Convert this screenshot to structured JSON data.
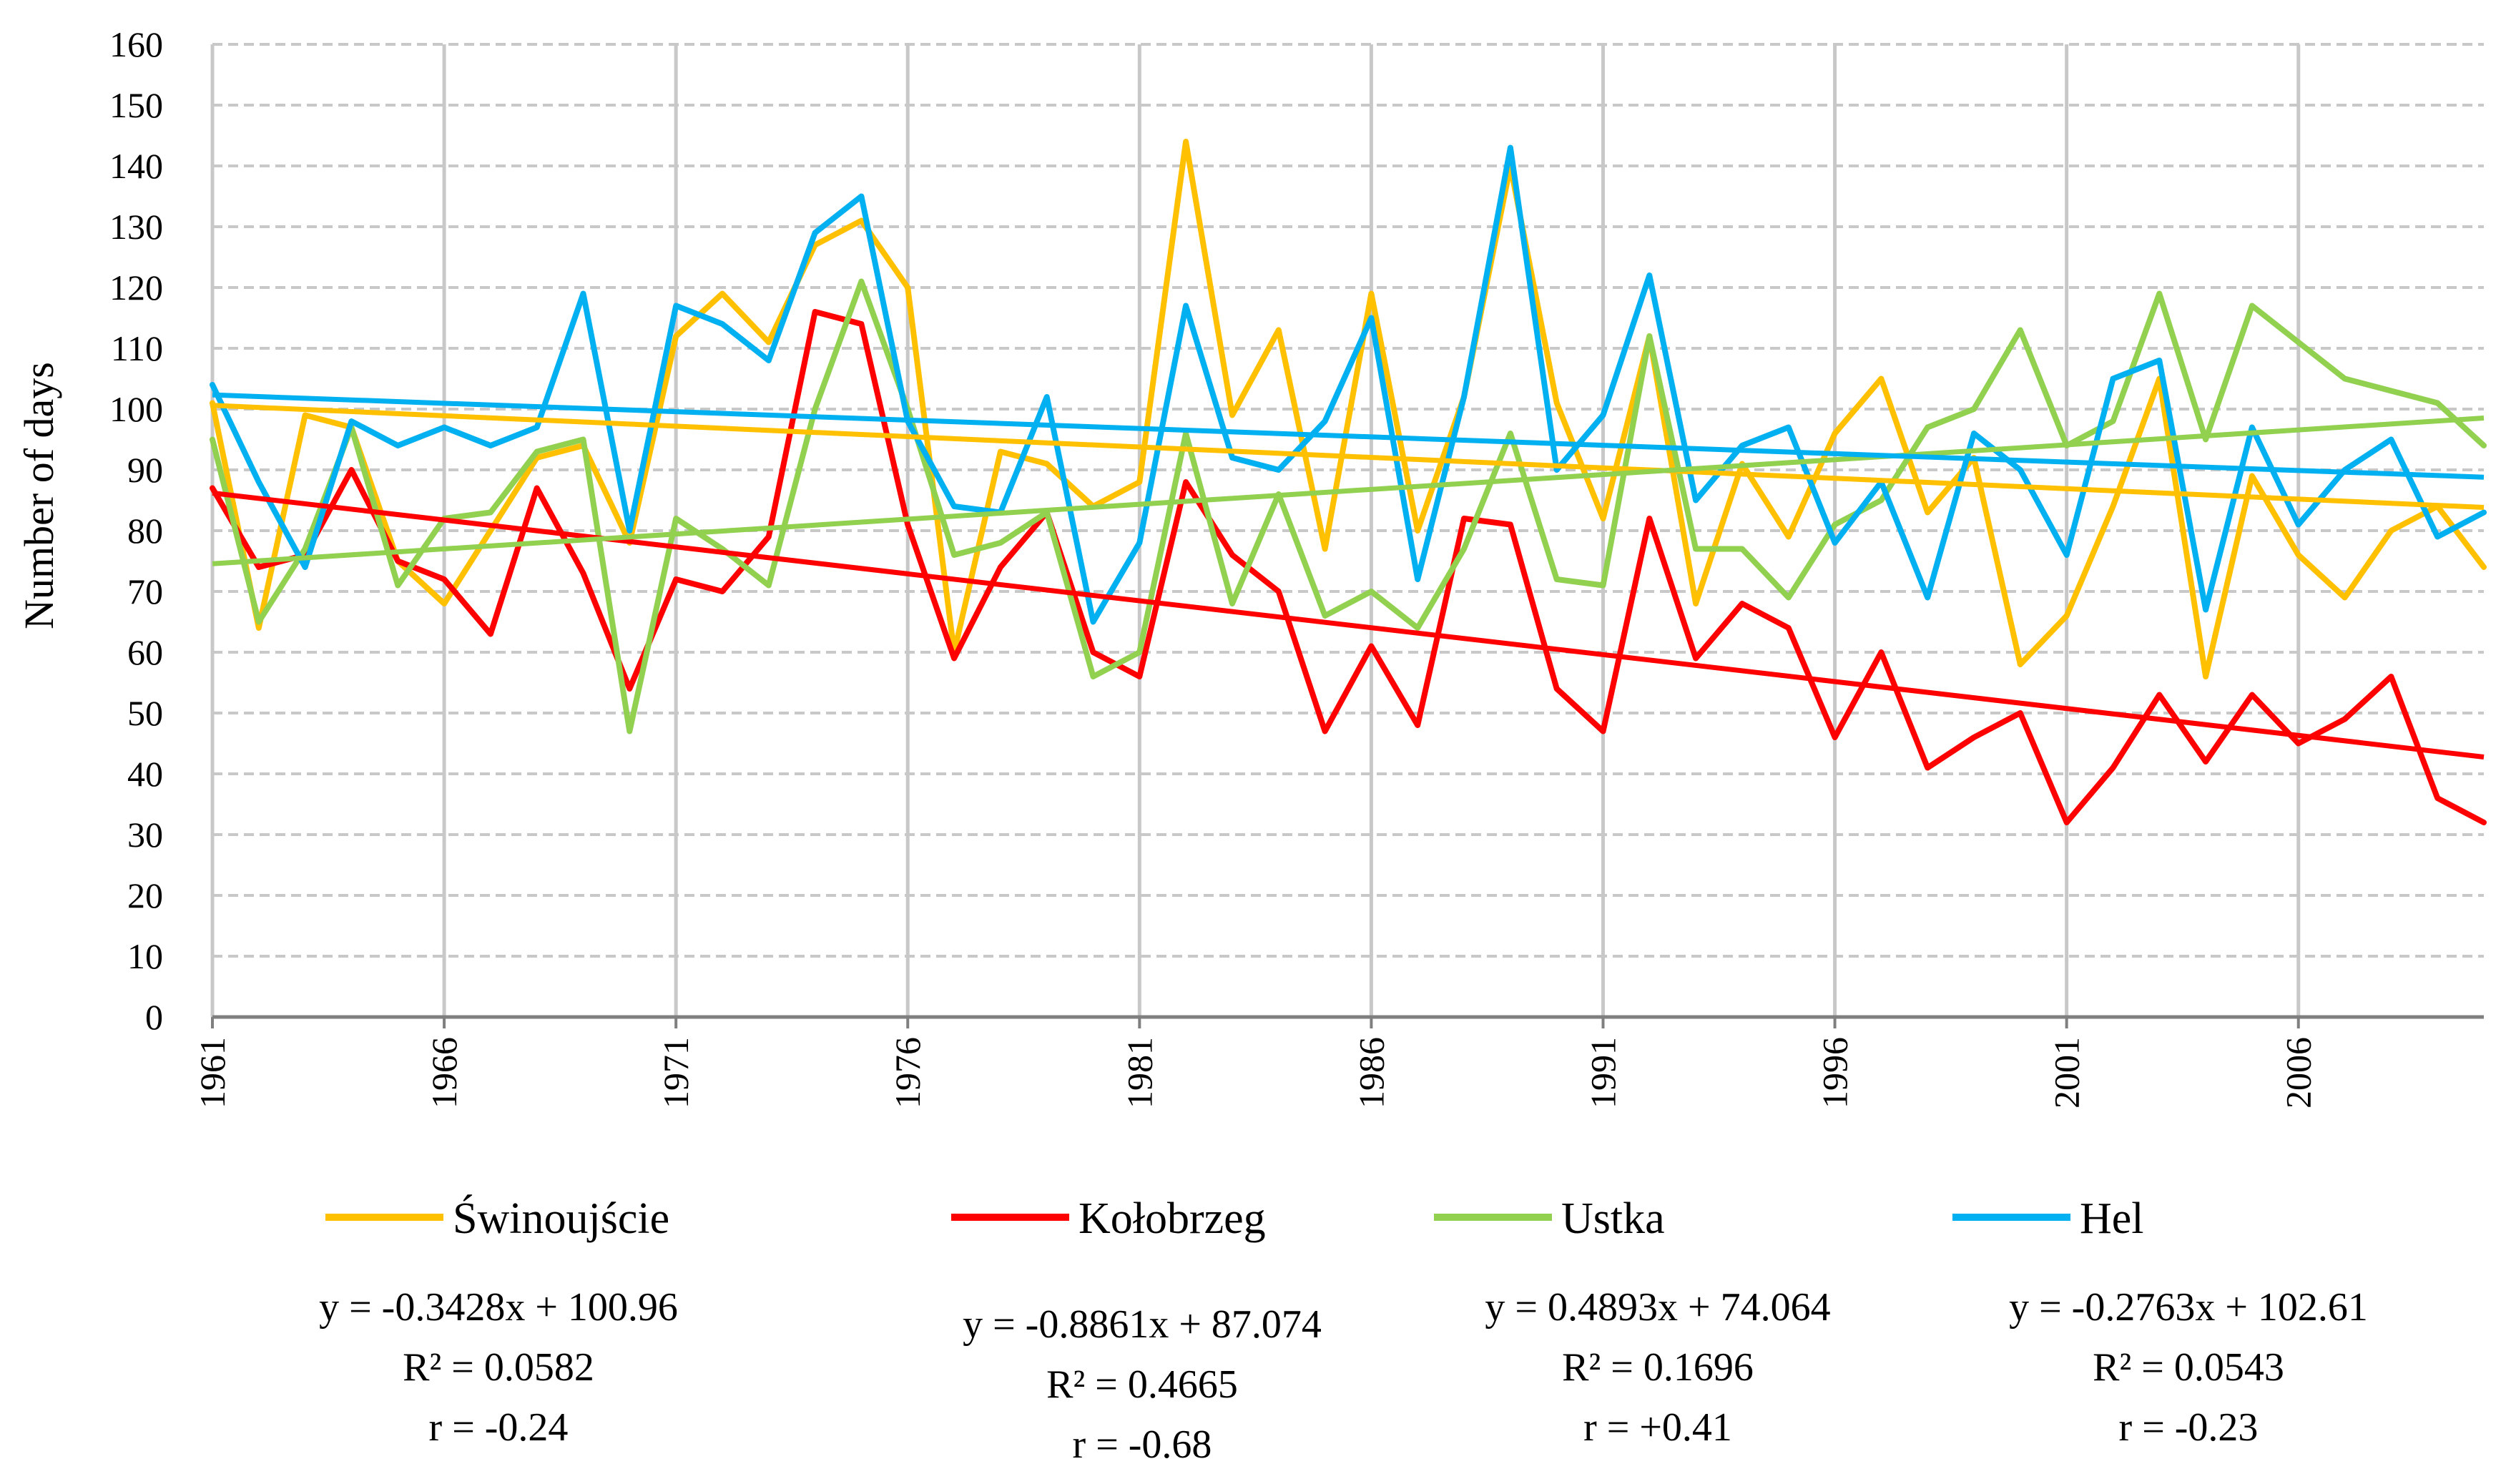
{
  "chart_data": {
    "type": "line",
    "title": "",
    "xlabel": "",
    "ylabel": "Number of days",
    "ylim": [
      0,
      160
    ],
    "y_ticks": [
      "0",
      "10",
      "20",
      "30",
      "40",
      "50",
      "60",
      "70",
      "80",
      "90",
      "100",
      "110",
      "120",
      "130",
      "140",
      "150",
      "160"
    ],
    "x_tick_labels": [
      "1961",
      "1966",
      "1971",
      "1976",
      "1981",
      "1986",
      "1991",
      "1996",
      "2001",
      "2006"
    ],
    "x_start": 1961,
    "x_end": 2010,
    "grid": true,
    "legend_position": "bottom",
    "series": [
      {
        "name": "Świnoujście",
        "color": "#FFC000",
        "values": [
          101,
          64,
          99,
          97,
          75,
          68,
          80,
          92,
          94,
          78,
          112,
          119,
          111,
          127,
          131,
          120,
          60,
          93,
          91,
          84,
          88,
          144,
          99,
          113,
          77,
          119,
          80,
          102,
          140,
          101,
          82,
          112,
          68,
          91,
          79,
          96,
          105,
          83,
          92,
          58,
          66,
          84,
          105,
          56,
          89,
          76,
          69,
          80,
          84,
          74
        ],
        "trend": {
          "slope": -0.3428,
          "intercept": 100.96
        },
        "equation": "y = -0.3428x + 100.96",
        "r2": "R² = 0.0582",
        "r": "r = -0.24"
      },
      {
        "name": "Kołobrzeg",
        "color": "#FF0000",
        "values": [
          87,
          74,
          76,
          90,
          75,
          72,
          63,
          87,
          73,
          54,
          72,
          70,
          79,
          116,
          114,
          81,
          59,
          74,
          83,
          60,
          56,
          88,
          76,
          70,
          47,
          61,
          48,
          82,
          81,
          54,
          47,
          82,
          59,
          68,
          64,
          46,
          60,
          41,
          46,
          50,
          32,
          41,
          53,
          42,
          53,
          45,
          49,
          56,
          36,
          32
        ],
        "trend": {
          "slope": -0.8861,
          "intercept": 87.074
        },
        "equation": "y = -0.8861x + 87.074",
        "r2": "R² = 0.4665",
        "r": "r = -0.68"
      },
      {
        "name": "Ustka",
        "color": "#92D050",
        "values": [
          95,
          65,
          77,
          97,
          71,
          82,
          83,
          93,
          95,
          47,
          82,
          77,
          71,
          100,
          121,
          100,
          76,
          78,
          83,
          56,
          60,
          96,
          68,
          86,
          66,
          70,
          64,
          77,
          96,
          72,
          71,
          112,
          77,
          77,
          69,
          81,
          85,
          97,
          100,
          113,
          94,
          98,
          119,
          95,
          117,
          111,
          105,
          103,
          101,
          94
        ],
        "trend": {
          "slope": 0.4893,
          "intercept": 74.064
        },
        "equation": "y = 0.4893x + 74.064",
        "r2": "R² = 0.1696",
        "r": "r = +0.41"
      },
      {
        "name": "Hel",
        "color": "#00B0F0",
        "values": [
          104,
          88,
          74,
          98,
          94,
          97,
          94,
          97,
          119,
          80,
          117,
          114,
          108,
          129,
          135,
          98,
          84,
          83,
          102,
          65,
          78,
          117,
          92,
          90,
          98,
          115,
          72,
          102,
          143,
          90,
          99,
          122,
          85,
          94,
          97,
          78,
          88,
          69,
          96,
          90,
          76,
          105,
          108,
          67,
          97,
          81,
          90,
          95,
          79,
          83
        ],
        "trend": {
          "slope": -0.2763,
          "intercept": 102.61
        },
        "equation": "y = -0.2763x + 102.61",
        "r2": "R² = 0.0543",
        "r": "r = -0.23"
      }
    ]
  }
}
